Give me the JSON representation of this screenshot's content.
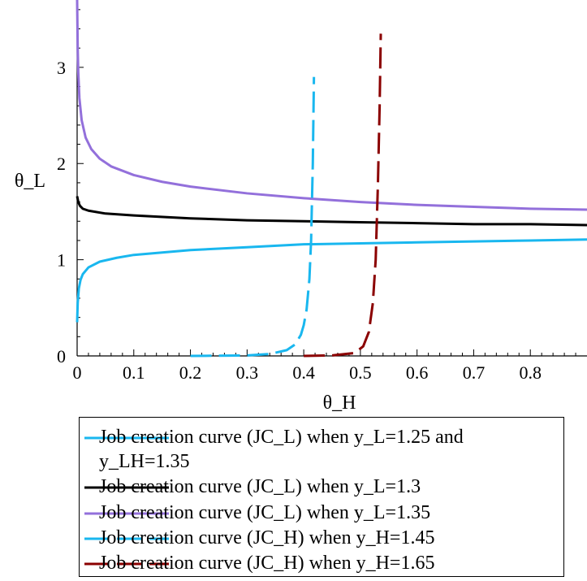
{
  "chart_data": {
    "type": "line",
    "xlabel": "θ_H",
    "ylabel": "θ_L",
    "xlim": [
      0,
      0.9
    ],
    "ylim": [
      0,
      3.7
    ],
    "xticks": [
      "0",
      "0.1",
      "0.2",
      "0.3",
      "0.4",
      "0.5",
      "0.6",
      "0.7",
      "0.8"
    ],
    "yticks": [
      "0",
      "1",
      "2",
      "3"
    ],
    "grid": false,
    "legend_position": "below",
    "series": [
      {
        "name": "Job creation curve (JC_L) when y_L=1.25 and y_LH=1.35",
        "color": "#19b7ef",
        "dash": "solid",
        "points": [
          [
            0.0,
            0.35
          ],
          [
            0.001,
            0.55
          ],
          [
            0.003,
            0.7
          ],
          [
            0.006,
            0.79
          ],
          [
            0.01,
            0.85
          ],
          [
            0.02,
            0.92
          ],
          [
            0.04,
            0.98
          ],
          [
            0.07,
            1.02
          ],
          [
            0.1,
            1.05
          ],
          [
            0.2,
            1.1
          ],
          [
            0.3,
            1.13
          ],
          [
            0.4,
            1.16
          ],
          [
            0.5,
            1.17
          ],
          [
            0.6,
            1.18
          ],
          [
            0.7,
            1.19
          ],
          [
            0.8,
            1.2
          ],
          [
            0.9,
            1.21
          ]
        ]
      },
      {
        "name": "Job creation curve (JC_L) when y_L=1.3",
        "color": "#000000",
        "dash": "solid",
        "points": [
          [
            0.0,
            1.66
          ],
          [
            0.002,
            1.6
          ],
          [
            0.005,
            1.56
          ],
          [
            0.01,
            1.53
          ],
          [
            0.02,
            1.51
          ],
          [
            0.05,
            1.48
          ],
          [
            0.1,
            1.46
          ],
          [
            0.2,
            1.43
          ],
          [
            0.3,
            1.41
          ],
          [
            0.4,
            1.4
          ],
          [
            0.5,
            1.39
          ],
          [
            0.6,
            1.38
          ],
          [
            0.7,
            1.37
          ],
          [
            0.8,
            1.37
          ],
          [
            0.9,
            1.36
          ]
        ]
      },
      {
        "name": "Job creation curve (JC_L) when y_L=1.35",
        "color": "#9370db",
        "dash": "solid",
        "points": [
          [
            0.0,
            3.7
          ],
          [
            0.001,
            3.2
          ],
          [
            0.002,
            2.95
          ],
          [
            0.004,
            2.68
          ],
          [
            0.008,
            2.45
          ],
          [
            0.015,
            2.27
          ],
          [
            0.025,
            2.15
          ],
          [
            0.04,
            2.05
          ],
          [
            0.06,
            1.97
          ],
          [
            0.1,
            1.88
          ],
          [
            0.15,
            1.81
          ],
          [
            0.2,
            1.76
          ],
          [
            0.3,
            1.69
          ],
          [
            0.4,
            1.64
          ],
          [
            0.5,
            1.6
          ],
          [
            0.6,
            1.57
          ],
          [
            0.7,
            1.55
          ],
          [
            0.8,
            1.53
          ],
          [
            0.9,
            1.52
          ]
        ]
      },
      {
        "name": "Job creation curve (JC_H) when y_H=1.45",
        "color": "#19b7ef",
        "dash": "dashed",
        "points": [
          [
            0.2,
            0.0
          ],
          [
            0.3,
            0.005
          ],
          [
            0.34,
            0.02
          ],
          [
            0.37,
            0.06
          ],
          [
            0.385,
            0.12
          ],
          [
            0.395,
            0.22
          ],
          [
            0.4,
            0.32
          ],
          [
            0.405,
            0.48
          ],
          [
            0.41,
            0.8
          ],
          [
            0.413,
            1.2
          ],
          [
            0.416,
            2.0
          ],
          [
            0.418,
            2.9
          ]
        ]
      },
      {
        "name": "Job creation curve (JC_H) when y_H=1.65",
        "color": "#8b0000",
        "dash": "dashed",
        "points": [
          [
            0.4,
            0.0
          ],
          [
            0.45,
            0.005
          ],
          [
            0.49,
            0.03
          ],
          [
            0.505,
            0.1
          ],
          [
            0.515,
            0.25
          ],
          [
            0.522,
            0.55
          ],
          [
            0.527,
            1.0
          ],
          [
            0.531,
            1.8
          ],
          [
            0.534,
            2.6
          ],
          [
            0.536,
            3.35
          ]
        ]
      }
    ]
  },
  "legend": {
    "items": [
      {
        "line1": "Job creation curve (JC_L) when y_L=1.25 and",
        "line2": "y_LH=1.35"
      },
      {
        "line1": "Job creation curve (JC_L) when y_L=1.3"
      },
      {
        "line1": "Job creation curve (JC_L) when y_L=1.35"
      },
      {
        "line1": "Job creation curve (JC_H) when y_H=1.45"
      },
      {
        "line1": "Job creation curve (JC_H) when y_H=1.65"
      }
    ]
  }
}
